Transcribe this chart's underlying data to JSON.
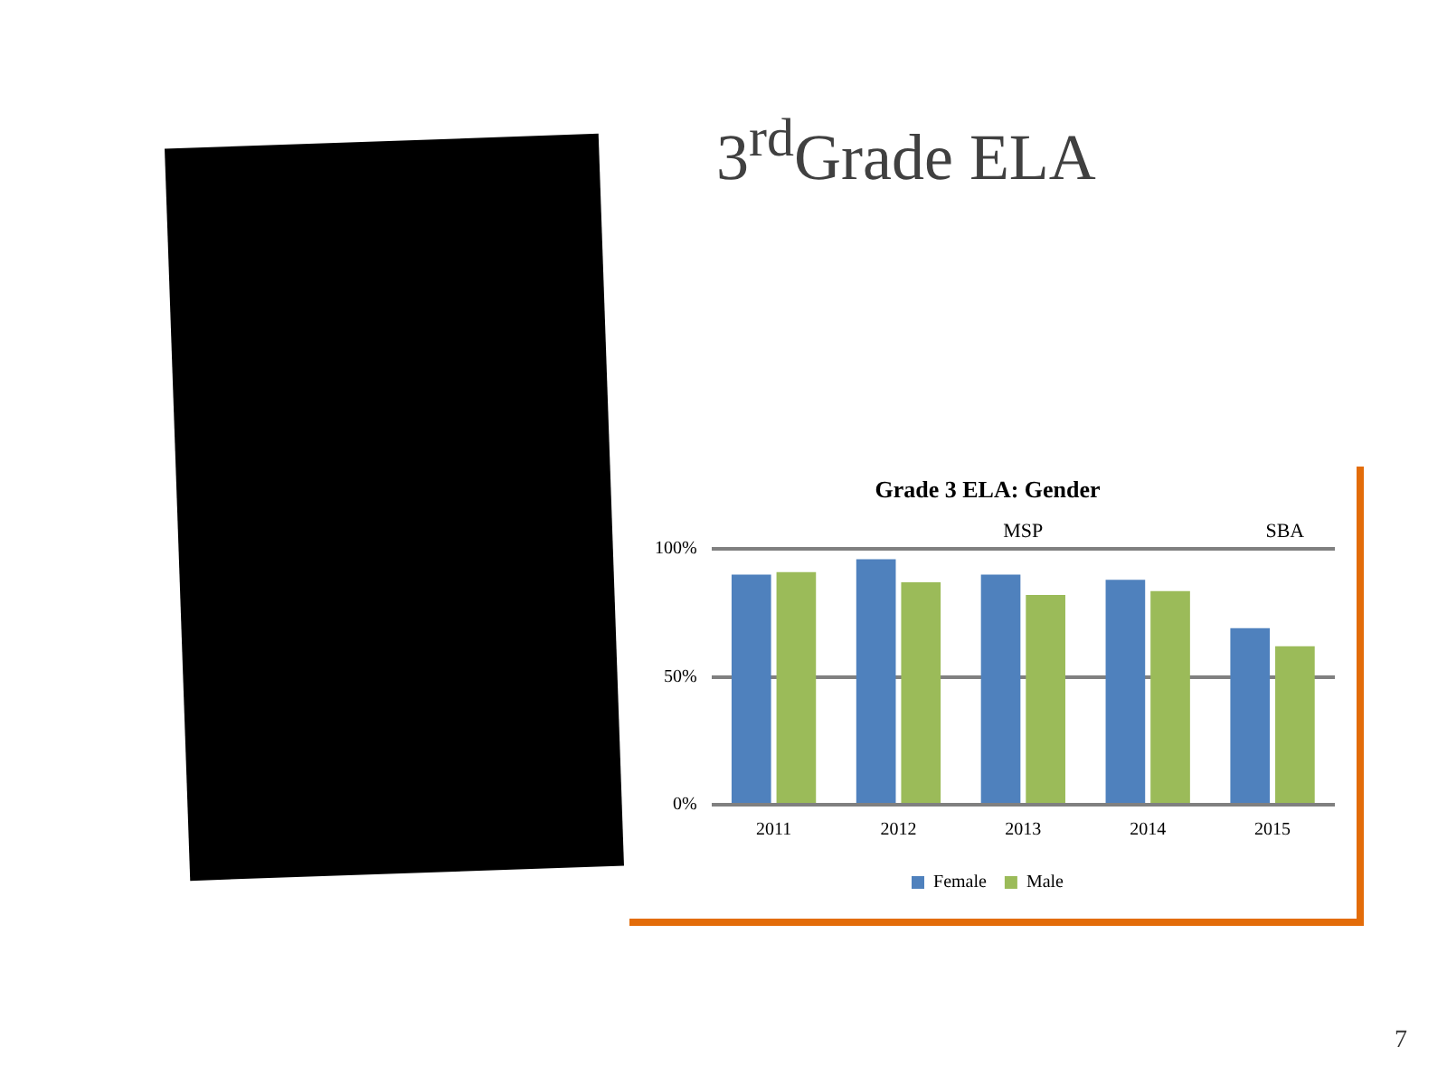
{
  "chart_data": {
    "type": "bar",
    "title": "3$^{rd}$Grade ELA",
    "subtitle": "Grade 3 ELA: Gender",
    "categories": [
      "2011",
      "2012",
      "2013",
      "2014",
      "2015"
    ],
    "series": [
      {
        "name": "Female",
        "color": "#4f81bd",
        "values": [
          90,
          96,
          90,
          88,
          69
        ]
      },
      {
        "name": "Male",
        "color": "#9bbb59",
        "values": [
          91,
          87,
          82,
          83.5,
          62
        ]
      }
    ],
    "ylim": [
      0,
      100
    ],
    "yticks": [
      {
        "value": 0,
        "label": "0%"
      },
      {
        "value": 50,
        "label": "50%"
      },
      {
        "value": 100,
        "label": "100%"
      }
    ],
    "grid": "y",
    "legend": "bottom",
    "annotations": [
      "MSP",
      "SBA",
      "7"
    ]
  }
}
